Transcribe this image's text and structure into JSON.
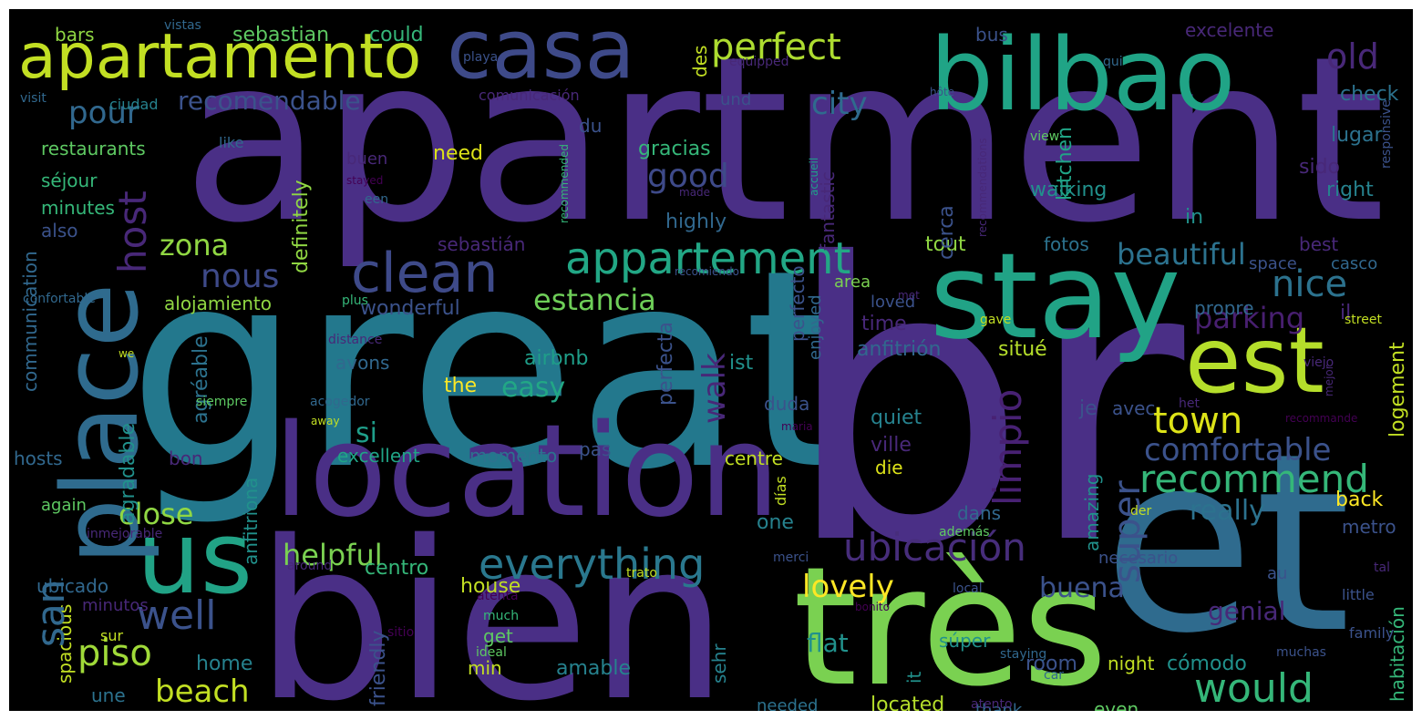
{
  "word_cloud": {
    "background": "#000000",
    "palette": [
      "#440154",
      "#482878",
      "#3e4a89",
      "#31688e",
      "#26828e",
      "#1f9e89",
      "#35b779",
      "#6ece58",
      "#b5de2b",
      "#fde725"
    ],
    "words": [
      {
        "text": "apartment",
        "color": "#4a2f86"
      },
      {
        "text": "great",
        "color": "#23788d"
      },
      {
        "text": "br",
        "color": "#4a2f86"
      },
      {
        "text": "bien",
        "color": "#4a2f86"
      },
      {
        "text": "et",
        "color": "#2f6b8e"
      },
      {
        "text": "location",
        "color": "#4a2f86"
      },
      {
        "text": "très",
        "color": "#7ad151"
      },
      {
        "text": "stay",
        "color": "#21a386"
      },
      {
        "text": "bilbao",
        "color": "#20a486"
      },
      {
        "text": "casa",
        "color": "#3e4a89"
      },
      {
        "text": "us",
        "color": "#21a386"
      },
      {
        "text": "place",
        "color": "#2f6b8e"
      },
      {
        "text": "apartamento",
        "color": "#c2df23"
      },
      {
        "text": "est",
        "color": "#b5de2b"
      },
      {
        "text": "clean",
        "color": "#3e4a89"
      },
      {
        "text": "appartement",
        "color": "#22a785"
      },
      {
        "text": "everything",
        "color": "#2a788e"
      },
      {
        "text": "ubicación",
        "color": "#472d7b"
      },
      {
        "text": "recommend",
        "color": "#35b779"
      },
      {
        "text": "limpio",
        "color": "#482173"
      },
      {
        "text": "super",
        "color": "#3b528b"
      },
      {
        "text": "would",
        "color": "#35b779"
      },
      {
        "text": "well",
        "color": "#3b528b"
      },
      {
        "text": "piso",
        "color": "#a0da39"
      },
      {
        "text": "host",
        "color": "#482878"
      },
      {
        "text": "san",
        "color": "#31688e"
      },
      {
        "text": "perfect",
        "color": "#addc30"
      },
      {
        "text": "old",
        "color": "#482878"
      },
      {
        "text": "nice",
        "color": "#2c728e"
      },
      {
        "text": "town",
        "color": "#dde318"
      },
      {
        "text": "comfortable",
        "color": "#3b528b"
      },
      {
        "text": "beach",
        "color": "#c2df23"
      },
      {
        "text": "close",
        "color": "#90d743"
      },
      {
        "text": "helpful",
        "color": "#7ad151"
      },
      {
        "text": "lovely",
        "color": "#fde725"
      },
      {
        "text": "good",
        "color": "#3e4a89"
      },
      {
        "text": "nous",
        "color": "#3e4a89"
      },
      {
        "text": "estancia",
        "color": "#6ece58"
      },
      {
        "text": "parking",
        "color": "#481f70"
      },
      {
        "text": "beautiful",
        "color": "#2c728e"
      },
      {
        "text": "pour",
        "color": "#31688e"
      },
      {
        "text": "recomendable",
        "color": "#3b528b"
      },
      {
        "text": "city",
        "color": "#2f6b8e"
      },
      {
        "text": "zona",
        "color": "#90d743"
      },
      {
        "text": "buena",
        "color": "#3b528b"
      },
      {
        "text": "really",
        "color": "#2c728e"
      },
      {
        "text": "easy",
        "color": "#22a785"
      },
      {
        "text": "walk",
        "color": "#482878"
      },
      {
        "text": "si",
        "color": "#1f9e89"
      },
      {
        "text": "flat",
        "color": "#21918c"
      },
      {
        "text": "genial",
        "color": "#482878"
      },
      {
        "text": "house",
        "color": "#c2df23"
      },
      {
        "text": "room",
        "color": "#3b528b"
      },
      {
        "text": "cómodo",
        "color": "#21918c"
      },
      {
        "text": "back",
        "color": "#fde725"
      },
      {
        "text": "amable",
        "color": "#26828e"
      },
      {
        "text": "home",
        "color": "#26828e"
      },
      {
        "text": "located",
        "color": "#b5de2b"
      },
      {
        "text": "bars",
        "color": "#90d743"
      },
      {
        "text": "sebastian",
        "color": "#5ec962"
      },
      {
        "text": "could",
        "color": "#35b779"
      },
      {
        "text": "restaurants",
        "color": "#5ec962"
      },
      {
        "text": "séjour",
        "color": "#35b779"
      },
      {
        "text": "minutes",
        "color": "#35b779"
      },
      {
        "text": "also",
        "color": "#3b528b"
      },
      {
        "text": "alojamiento",
        "color": "#90d743"
      },
      {
        "text": "wonderful",
        "color": "#3b528b"
      },
      {
        "text": "airbnb",
        "color": "#1f9e89"
      },
      {
        "text": "avons",
        "color": "#31688e"
      },
      {
        "text": "excellent",
        "color": "#20a486"
      },
      {
        "text": "momento",
        "color": "#2c728e"
      },
      {
        "text": "pas",
        "color": "#3b528b"
      },
      {
        "text": "centre",
        "color": "#c2df23"
      },
      {
        "text": "die",
        "color": "#dde318"
      },
      {
        "text": "quiet",
        "color": "#26828e"
      },
      {
        "text": "ville",
        "color": "#482878"
      },
      {
        "text": "anfitrión",
        "color": "#31688e"
      },
      {
        "text": "situé",
        "color": "#b5de2b"
      },
      {
        "text": "time",
        "color": "#482878"
      },
      {
        "text": "loved",
        "color": "#3b528b"
      },
      {
        "text": "area",
        "color": "#7ad151"
      },
      {
        "text": "tout",
        "color": "#90d743"
      },
      {
        "text": "fotos",
        "color": "#2c728e"
      },
      {
        "text": "in",
        "color": "#21918c"
      },
      {
        "text": "best",
        "color": "#482878"
      },
      {
        "text": "propre",
        "color": "#31688e"
      },
      {
        "text": "il",
        "color": "#482878"
      },
      {
        "text": "casco",
        "color": "#31688e"
      },
      {
        "text": "space",
        "color": "#3b528b"
      },
      {
        "text": "right",
        "color": "#26828e"
      },
      {
        "text": "sido",
        "color": "#482878"
      },
      {
        "text": "lugar",
        "color": "#2c728e"
      },
      {
        "text": "check",
        "color": "#2c728e"
      },
      {
        "text": "excelente",
        "color": "#482878"
      },
      {
        "text": "bus",
        "color": "#3b528b"
      },
      {
        "text": "des",
        "color": "#c2df23"
      },
      {
        "text": "und",
        "color": "#3b528b"
      },
      {
        "text": "du",
        "color": "#3b528b"
      },
      {
        "text": "need",
        "color": "#dde318"
      },
      {
        "text": "buen",
        "color": "#482878"
      },
      {
        "text": "gracias",
        "color": "#35b779"
      },
      {
        "text": "walking",
        "color": "#21918c"
      },
      {
        "text": "highly",
        "color": "#31688e"
      },
      {
        "text": "fantastic",
        "color": "#482878"
      },
      {
        "text": "cerca",
        "color": "#3b528b"
      },
      {
        "text": "definitely",
        "color": "#90d743"
      },
      {
        "text": "kitchen",
        "color": "#20a486"
      },
      {
        "text": "hosts",
        "color": "#31688e"
      },
      {
        "text": "bon",
        "color": "#482878"
      },
      {
        "text": "agradable",
        "color": "#21918c"
      },
      {
        "text": "agréable",
        "color": "#2c728e"
      },
      {
        "text": "communication",
        "color": "#31688e"
      },
      {
        "text": "anfitriona",
        "color": "#21918c"
      },
      {
        "text": "ubicado",
        "color": "#31688e"
      },
      {
        "text": "spacious",
        "color": "#c2df23"
      },
      {
        "text": "minutos",
        "color": "#482878"
      },
      {
        "text": "une",
        "color": "#2c728e"
      },
      {
        "text": "friendly",
        "color": "#3b528b"
      },
      {
        "text": "centro",
        "color": "#35b779"
      },
      {
        "text": "one",
        "color": "#26828e"
      },
      {
        "text": "get",
        "color": "#5ec962"
      },
      {
        "text": "min",
        "color": "#c2df23"
      },
      {
        "text": "sehr",
        "color": "#26828e"
      },
      {
        "text": "the",
        "color": "#fde725"
      },
      {
        "text": "ist",
        "color": "#21918c"
      },
      {
        "text": "perfecta",
        "color": "#3b528b"
      },
      {
        "text": "perfecto",
        "color": "#3b528b"
      },
      {
        "text": "duda",
        "color": "#3b528b"
      },
      {
        "text": "enjoyed",
        "color": "#31688e"
      },
      {
        "text": "avec",
        "color": "#3b528b"
      },
      {
        "text": "je",
        "color": "#3b528b"
      },
      {
        "text": "amazing",
        "color": "#21918c"
      },
      {
        "text": "logement",
        "color": "#c2df23"
      },
      {
        "text": "dans",
        "color": "#31688e"
      },
      {
        "text": "metro",
        "color": "#3b528b"
      },
      {
        "text": "necesario",
        "color": "#3b528b"
      },
      {
        "text": "habitación",
        "color": "#35b779"
      },
      {
        "text": "night",
        "color": "#c2df23"
      },
      {
        "text": "it",
        "color": "#21918c"
      },
      {
        "text": "súper",
        "color": "#21918c"
      },
      {
        "text": "even",
        "color": "#5ec962"
      },
      {
        "text": "thank",
        "color": "#31688e"
      },
      {
        "text": "needed",
        "color": "#2c728e"
      },
      {
        "text": "au",
        "color": "#3b528b"
      },
      {
        "text": "little",
        "color": "#3b528b"
      },
      {
        "text": "family",
        "color": "#3b528b"
      },
      {
        "text": "muchas",
        "color": "#3b528b"
      },
      {
        "text": "again",
        "color": "#5ec962"
      },
      {
        "text": "inmejorable",
        "color": "#482878"
      },
      {
        "text": "sur",
        "color": "#c2df23"
      },
      {
        "text": "días",
        "color": "#c2df23"
      },
      {
        "text": "siempre",
        "color": "#5ec962"
      },
      {
        "text": "vistas",
        "color": "#31688e"
      },
      {
        "text": "ciudad",
        "color": "#26828e"
      },
      {
        "text": "visit",
        "color": "#31688e"
      },
      {
        "text": "playa",
        "color": "#3b528b"
      },
      {
        "text": "comunicación",
        "color": "#482878"
      },
      {
        "text": "equipped",
        "color": "#482878"
      },
      {
        "text": "like",
        "color": "#31688e"
      },
      {
        "text": "stayed",
        "color": "#440154"
      },
      {
        "text": "een",
        "color": "#31688e"
      },
      {
        "text": "made",
        "color": "#482878"
      },
      {
        "text": "recommended",
        "color": "#35b779"
      },
      {
        "text": "accueil",
        "color": "#1f9e89"
      },
      {
        "text": "hôte",
        "color": "#3b528b"
      },
      {
        "text": "qui",
        "color": "#31688e"
      },
      {
        "text": "view",
        "color": "#5ec962"
      },
      {
        "text": "recommendations",
        "color": "#482878"
      },
      {
        "text": "responsive",
        "color": "#3b528b"
      },
      {
        "text": "confortable",
        "color": "#31688e"
      },
      {
        "text": "plus",
        "color": "#35b779"
      },
      {
        "text": "recomiendo",
        "color": "#3b528b"
      },
      {
        "text": "met",
        "color": "#482878"
      },
      {
        "text": "we",
        "color": "#c2df23"
      },
      {
        "text": "distance",
        "color": "#482878"
      },
      {
        "text": "acogedor",
        "color": "#31688e"
      },
      {
        "text": "away",
        "color": "#c2df23"
      },
      {
        "text": "maria",
        "color": "#440154"
      },
      {
        "text": "gave",
        "color": "#c2df23"
      },
      {
        "text": "street",
        "color": "#c2df23"
      },
      {
        "text": "viejo",
        "color": "#482878"
      },
      {
        "text": "mejor",
        "color": "#482878"
      },
      {
        "text": "het",
        "color": "#482878"
      },
      {
        "text": "recommande",
        "color": "#440154"
      },
      {
        "text": "además",
        "color": "#5ec962"
      },
      {
        "text": "der",
        "color": "#c2df23"
      },
      {
        "text": "merci",
        "color": "#3b528b"
      },
      {
        "text": "around",
        "color": "#482878"
      },
      {
        "text": "trato",
        "color": "#c2df23"
      },
      {
        "text": "local",
        "color": "#3b528b"
      },
      {
        "text": "tal",
        "color": "#482878"
      },
      {
        "text": "much",
        "color": "#35b779"
      },
      {
        "text": "atenta",
        "color": "#440154"
      },
      {
        "text": "bonito",
        "color": "#440154"
      },
      {
        "text": "sitio",
        "color": "#440154"
      },
      {
        "text": "ideal",
        "color": "#5ec962"
      },
      {
        "text": "staying",
        "color": "#31688e"
      },
      {
        "text": "car",
        "color": "#31688e"
      },
      {
        "text": "atento",
        "color": "#482878"
      },
      {
        "text": "san",
        "color": "#31688e"
      },
      {
        "text": "sebastián",
        "color": "#482878"
      }
    ]
  }
}
